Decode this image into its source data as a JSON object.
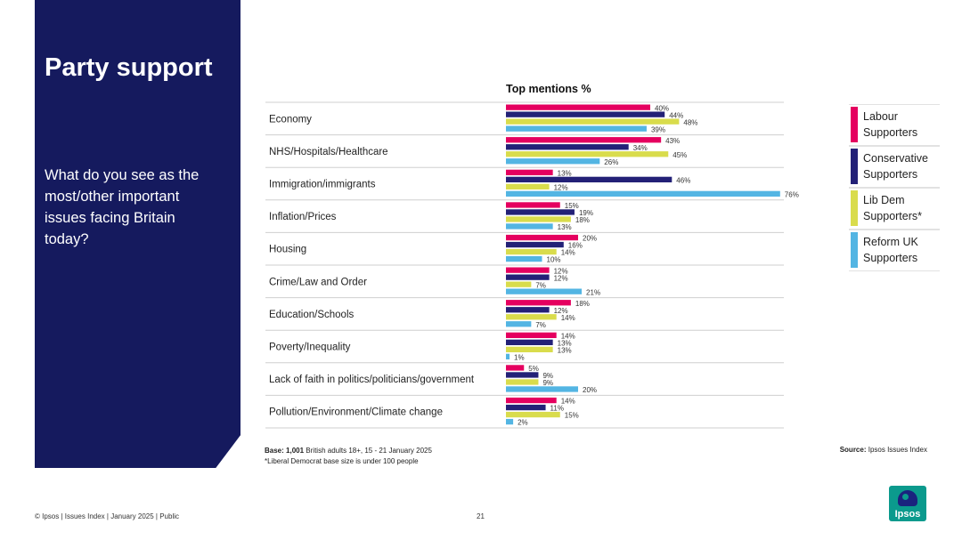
{
  "slide": {
    "title": "Party support",
    "question": "What do you see as the most/other important issues facing Britain today?",
    "base_label": "Base:",
    "base_value": "1,001",
    "base_text": "British adults 18+, 15 - 21 January 2025",
    "base_note": "*Liberal Democrat base size is under 100 people",
    "source_label": "Source:",
    "source_text": "Ipsos Issues Index",
    "footer": "© Ipsos | Issues Index | January 2025 | Public",
    "page_number": "21",
    "logo_text": "Ipsos"
  },
  "legend": [
    {
      "label": "Labour Supporters",
      "color": "#e5005f"
    },
    {
      "label": "Conservative Supporters",
      "color": "#232177"
    },
    {
      "label": "Lib Dem Supporters*",
      "color": "#d9dc4c"
    },
    {
      "label": "Reform UK Supporters",
      "color": "#53b5e3"
    }
  ],
  "chart_data": {
    "type": "bar",
    "orientation": "horizontal",
    "title": "Top mentions %",
    "unit": "%",
    "categories": [
      "Economy",
      "NHS/Hospitals/Healthcare",
      "Immigration/immigrants",
      "Inflation/Prices",
      "Housing",
      "Crime/Law and Order",
      "Education/Schools",
      "Poverty/Inequality",
      "Lack of faith in politics/politicians/government",
      "Pollution/Environment/Climate change"
    ],
    "series": [
      {
        "name": "Labour Supporters",
        "color": "#e5005f",
        "values": [
          40,
          43,
          13,
          15,
          20,
          12,
          18,
          14,
          5,
          14
        ]
      },
      {
        "name": "Conservative Supporters",
        "color": "#232177",
        "values": [
          44,
          34,
          46,
          19,
          16,
          12,
          12,
          13,
          9,
          11
        ]
      },
      {
        "name": "Lib Dem Supporters*",
        "color": "#d9dc4c",
        "values": [
          48,
          45,
          12,
          18,
          14,
          7,
          14,
          13,
          9,
          15
        ]
      },
      {
        "name": "Reform UK Supporters",
        "color": "#53b5e3",
        "values": [
          39,
          26,
          76,
          13,
          10,
          21,
          7,
          1,
          20,
          2
        ]
      }
    ],
    "xlim": [
      0,
      100
    ]
  }
}
